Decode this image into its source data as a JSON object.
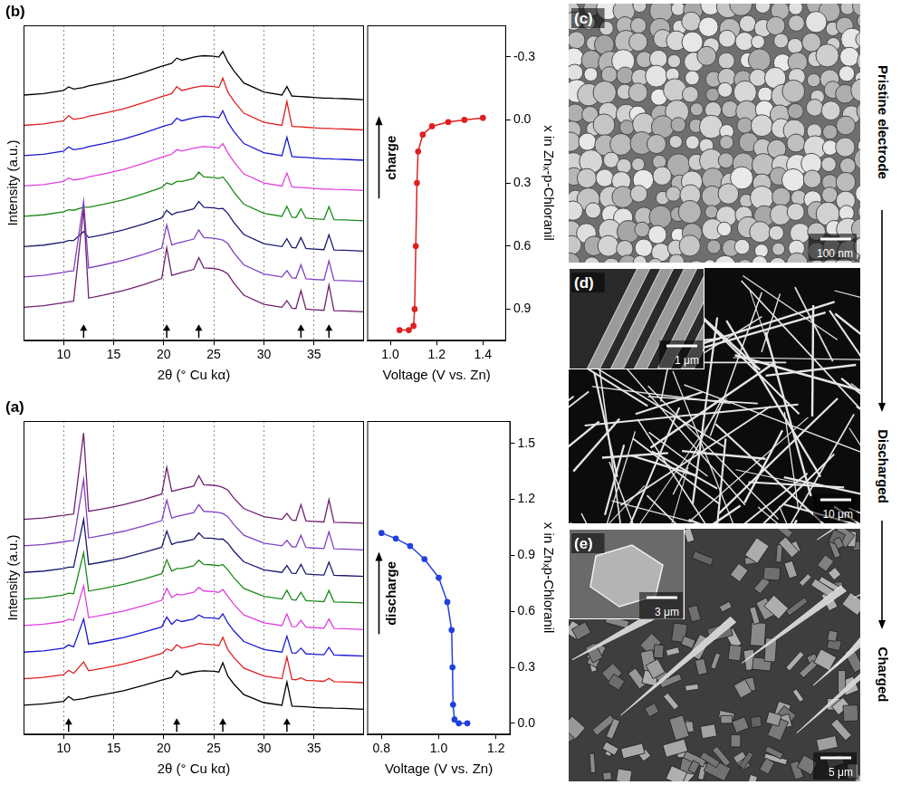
{
  "chart_data": [
    {
      "type": "line",
      "panel": "(b)",
      "x_label": "2θ (° Cu kα)",
      "y_label": "Intensity (a.u.)",
      "x": [
        6,
        8,
        10,
        10.5,
        11,
        12,
        12.5,
        14,
        16,
        18,
        19.8,
        20.3,
        20.8,
        21.3,
        21.8,
        23,
        23.5,
        24,
        25,
        25.5,
        25.9,
        26.4,
        27,
        28,
        30,
        31.8,
        32.3,
        32.8,
        33.2,
        33.7,
        34.2,
        35,
        36,
        36.5,
        37,
        38,
        40
      ],
      "series": [
        {
          "color": "#702070",
          "values": [
            0.3,
            0.35,
            0.45,
            0.48,
            0.5,
            3.55,
            0.6,
            0.7,
            0.85,
            1.05,
            1.25,
            2.26,
            1.35,
            1.4,
            1.45,
            1.55,
            1.94,
            1.6,
            1.58,
            1.55,
            1.5,
            1.4,
            1.1,
            0.7,
            0.4,
            0.3,
            0.52,
            0.27,
            0.26,
            0.85,
            0.24,
            0.22,
            0.2,
            1.04,
            0.19,
            0.18,
            0.15
          ]
        },
        {
          "color": "#8040c0",
          "values": [
            1.3,
            1.35,
            1.45,
            1.49,
            1.5,
            3.8,
            1.6,
            1.7,
            1.85,
            2.05,
            2.25,
            3.02,
            2.35,
            2.41,
            2.45,
            2.55,
            2.85,
            2.6,
            2.58,
            2.55,
            2.52,
            2.4,
            2.1,
            1.7,
            1.4,
            1.3,
            1.51,
            1.27,
            1.26,
            1.7,
            1.24,
            1.22,
            1.2,
            1.83,
            1.19,
            1.18,
            1.15
          ]
        },
        {
          "color": "#1a1a70",
          "values": [
            2.3,
            2.35,
            2.45,
            2.5,
            2.5,
            2.8,
            2.6,
            2.7,
            2.85,
            3.05,
            3.25,
            3.5,
            3.35,
            3.43,
            3.45,
            3.55,
            3.79,
            3.6,
            3.58,
            3.55,
            3.56,
            3.4,
            3.1,
            2.7,
            2.4,
            2.3,
            2.56,
            2.27,
            2.26,
            2.6,
            2.24,
            2.22,
            2.2,
            2.69,
            2.19,
            2.18,
            2.15
          ]
        },
        {
          "color": "#1a8a1a",
          "values": [
            3.3,
            3.35,
            3.45,
            3.52,
            3.5,
            3.6,
            3.6,
            3.7,
            3.85,
            4.05,
            4.25,
            4.4,
            4.35,
            4.45,
            4.45,
            4.55,
            4.76,
            4.6,
            4.58,
            4.55,
            4.6,
            4.4,
            4.1,
            3.7,
            3.4,
            3.3,
            3.63,
            3.27,
            3.26,
            3.55,
            3.24,
            3.22,
            3.2,
            3.62,
            3.19,
            3.18,
            3.15
          ]
        },
        {
          "color": "#e040e0",
          "values": [
            4.3,
            4.35,
            4.45,
            4.56,
            4.5,
            4.55,
            4.6,
            4.7,
            4.85,
            5.05,
            5.25,
            5.3,
            5.35,
            5.5,
            5.45,
            5.55,
            5.58,
            5.6,
            5.58,
            5.55,
            5.7,
            5.4,
            5.1,
            4.7,
            4.4,
            4.3,
            4.73,
            4.27,
            4.26,
            4.25,
            4.24,
            4.22,
            4.2,
            4.2,
            4.19,
            4.18,
            4.15
          ]
        },
        {
          "color": "#1a1ad0",
          "values": [
            5.3,
            5.35,
            5.45,
            5.59,
            5.5,
            5.55,
            5.6,
            5.7,
            5.85,
            6.05,
            6.25,
            6.3,
            6.35,
            6.54,
            6.45,
            6.55,
            6.58,
            6.6,
            6.58,
            6.55,
            6.78,
            6.4,
            6.1,
            5.7,
            5.4,
            5.3,
            5.91,
            5.27,
            5.26,
            5.25,
            5.24,
            5.22,
            5.2,
            5.2,
            5.19,
            5.18,
            5.15
          ]
        },
        {
          "color": "#e02020",
          "values": [
            6.3,
            6.35,
            6.45,
            6.62,
            6.5,
            6.55,
            6.6,
            6.7,
            6.85,
            7.05,
            7.25,
            7.3,
            7.35,
            7.58,
            7.45,
            7.55,
            7.58,
            7.6,
            7.58,
            7.55,
            7.86,
            7.4,
            7.1,
            6.7,
            6.4,
            6.3,
            7.09,
            6.27,
            6.26,
            6.25,
            6.24,
            6.22,
            6.2,
            6.2,
            6.19,
            6.18,
            6.15
          ]
        },
        {
          "color": "#000000",
          "values": [
            7.3,
            7.35,
            7.45,
            7.57,
            7.5,
            7.55,
            7.6,
            7.7,
            7.85,
            8.05,
            8.25,
            8.3,
            8.35,
            8.52,
            8.45,
            8.55,
            8.58,
            8.6,
            8.58,
            8.55,
            8.74,
            8.4,
            8.1,
            7.7,
            7.4,
            7.3,
            7.58,
            7.27,
            7.26,
            7.25,
            7.24,
            7.22,
            7.2,
            7.2,
            7.19,
            7.18,
            7.15
          ]
        }
      ],
      "xlim": [
        6,
        40
      ],
      "xticks": [
        10,
        15,
        20,
        25,
        30,
        35
      ],
      "ylim": [
        -0.8,
        9.6
      ],
      "grid": "x",
      "tick_labels": "x",
      "marked_peaks": [
        12,
        20.3,
        23.5,
        33.7,
        36.5
      ]
    },
    {
      "type": "line",
      "x_label": "Voltage (V vs. Zn)",
      "y_label": "x in Znₓ-p-Chloranil",
      "annotation": "charge",
      "x": [
        1.04,
        1.08,
        1.1,
        1.105,
        1.11,
        1.115,
        1.12,
        1.14,
        1.18,
        1.25,
        1.32,
        1.4
      ],
      "values": [
        1.0,
        1.0,
        0.98,
        0.9,
        0.6,
        0.3,
        0.15,
        0.07,
        0.03,
        0.01,
        0,
        -0.01
      ],
      "color": "#e02020",
      "marker": "circle",
      "xlim": [
        0.9,
        1.5
      ],
      "xticks": [
        {
          "value": 1,
          "label": "1.0"
        },
        1.2,
        1.4
      ],
      "ylim": [
        1.05,
        -0.45
      ],
      "yticks": [
        -0.3,
        {
          "value": 0,
          "label": "0.0"
        },
        0.3,
        0.6,
        0.9
      ],
      "grid": false
    },
    {
      "type": "line",
      "panel": "(a)",
      "x_label": "2θ (° Cu kα)",
      "y_label": "Intensity (a.u.)",
      "x": [
        6,
        8,
        10,
        10.5,
        11,
        12,
        12.5,
        14,
        16,
        18,
        19.8,
        20.3,
        20.8,
        21.3,
        21.8,
        23,
        23.5,
        24,
        25,
        25.5,
        25.9,
        26.4,
        27,
        28,
        30,
        31.8,
        32.3,
        32.8,
        33.2,
        33.7,
        34.2,
        35,
        36,
        36.5,
        37,
        38,
        40
      ],
      "series": [
        {
          "color": "#000000",
          "values": [
            0.3,
            0.35,
            0.45,
            0.63,
            0.5,
            0.55,
            0.6,
            0.7,
            0.85,
            1.05,
            1.25,
            1.3,
            1.35,
            1.6,
            1.45,
            1.55,
            1.58,
            1.6,
            1.58,
            1.55,
            1.9,
            1.4,
            1.1,
            0.7,
            0.4,
            0.3,
            1.18,
            0.27,
            0.26,
            0.25,
            0.24,
            0.22,
            0.2,
            0.2,
            0.19,
            0.18,
            0.15
          ]
        },
        {
          "color": "#e02020",
          "values": [
            1.3,
            1.35,
            1.45,
            1.62,
            1.5,
            1.93,
            1.6,
            1.7,
            1.85,
            2.05,
            2.25,
            2.42,
            2.35,
            2.58,
            2.45,
            2.55,
            2.63,
            2.6,
            2.58,
            2.55,
            2.86,
            2.4,
            2.1,
            1.7,
            1.4,
            1.3,
            2.12,
            1.27,
            1.26,
            1.33,
            1.24,
            1.22,
            1.2,
            1.31,
            1.19,
            1.18,
            1.15
          ]
        },
        {
          "color": "#1a1ad0",
          "values": [
            2.3,
            2.35,
            2.45,
            2.57,
            2.5,
            3.55,
            2.6,
            2.7,
            2.85,
            3.05,
            3.25,
            3.62,
            3.35,
            3.52,
            3.45,
            3.55,
            3.7,
            3.6,
            3.58,
            3.55,
            3.74,
            3.4,
            3.1,
            2.7,
            2.4,
            2.3,
            2.9,
            2.27,
            2.26,
            2.45,
            2.24,
            2.22,
            2.2,
            2.48,
            2.19,
            2.18,
            2.15
          ]
        },
        {
          "color": "#e040e0",
          "values": [
            3.3,
            3.35,
            3.45,
            3.54,
            3.5,
            4.8,
            3.6,
            3.7,
            3.85,
            4.05,
            4.25,
            4.7,
            4.35,
            4.48,
            4.45,
            4.55,
            4.73,
            4.6,
            4.58,
            4.55,
            4.66,
            4.4,
            4.1,
            3.7,
            3.4,
            3.3,
            3.74,
            3.27,
            3.26,
            3.5,
            3.24,
            3.22,
            3.2,
            3.55,
            3.19,
            3.18,
            3.15
          ]
        },
        {
          "color": "#1a8a1a",
          "values": [
            4.3,
            4.35,
            4.45,
            4.52,
            4.5,
            6.05,
            4.6,
            4.7,
            4.85,
            5.05,
            5.25,
            5.78,
            5.35,
            5.45,
            5.45,
            5.55,
            5.76,
            5.6,
            5.58,
            5.55,
            5.6,
            5.4,
            5.1,
            4.7,
            4.4,
            4.3,
            4.63,
            4.27,
            4.26,
            4.55,
            4.24,
            4.22,
            4.2,
            4.62,
            4.19,
            4.18,
            4.15
          ]
        },
        {
          "color": "#1a1a70",
          "values": [
            5.3,
            5.35,
            5.45,
            5.5,
            5.5,
            7.3,
            5.6,
            5.7,
            5.85,
            6.05,
            6.25,
            6.86,
            6.35,
            6.43,
            6.45,
            6.55,
            6.79,
            6.6,
            6.58,
            6.55,
            6.56,
            6.4,
            6.1,
            5.7,
            5.4,
            5.3,
            5.56,
            5.27,
            5.26,
            5.6,
            5.24,
            5.22,
            5.2,
            5.69,
            5.19,
            5.18,
            5.15
          ]
        },
        {
          "color": "#8040c0",
          "values": [
            6.3,
            6.35,
            6.45,
            6.49,
            6.5,
            8.8,
            6.6,
            6.7,
            6.85,
            7.05,
            7.25,
            8.02,
            7.35,
            7.41,
            7.45,
            7.55,
            7.85,
            7.6,
            7.58,
            7.55,
            7.52,
            7.4,
            7.1,
            6.7,
            6.4,
            6.3,
            6.51,
            6.27,
            6.26,
            6.7,
            6.24,
            6.22,
            6.2,
            6.83,
            6.19,
            6.18,
            6.15
          ]
        },
        {
          "color": "#702070",
          "values": [
            7.3,
            7.35,
            7.45,
            7.48,
            7.5,
            10.55,
            7.6,
            7.7,
            7.85,
            8.05,
            8.25,
            9.26,
            8.35,
            8.4,
            8.45,
            8.55,
            8.94,
            8.6,
            8.58,
            8.55,
            8.5,
            8.4,
            8.1,
            7.7,
            7.4,
            7.3,
            7.52,
            7.27,
            7.26,
            7.85,
            7.24,
            7.22,
            7.2,
            8.04,
            7.19,
            7.18,
            7.15
          ]
        }
      ],
      "xlim": [
        6,
        40
      ],
      "xticks": [
        10,
        15,
        20,
        25,
        30,
        35
      ],
      "ylim": [
        -0.8,
        11
      ],
      "grid": "x",
      "tick_labels": "x",
      "marked_peaks": [
        10.5,
        21.3,
        25.9,
        32.3
      ]
    },
    {
      "type": "line",
      "x_label": "Voltage (V vs. Zn)",
      "y_label": "x in Znₓp-Chloranil",
      "annotation": "discharge",
      "x": [
        1.1,
        1.07,
        1.055,
        1.05,
        1.048,
        1.045,
        1.03,
        1.0,
        0.95,
        0.9,
        0.85,
        0.8
      ],
      "values": [
        0,
        0,
        0.02,
        0.1,
        0.3,
        0.5,
        0.65,
        0.78,
        0.88,
        0.95,
        0.99,
        1.02
      ],
      "color": "#2040e0",
      "marker": "circle",
      "xlim": [
        0.75,
        1.25
      ],
      "xticks": [
        0.8,
        {
          "value": 1,
          "label": "1.0"
        },
        1.2
      ],
      "ylim": [
        -0.06,
        1.62
      ],
      "yticks": [
        {
          "value": 0,
          "label": "0.0"
        },
        0.3,
        0.6,
        0.9,
        1.2,
        1.5
      ],
      "grid": false
    }
  ],
  "images": [
    {
      "panel": "(c)",
      "state": "Pristine electrode",
      "scale_bars": [
        "100 nm"
      ]
    },
    {
      "panel": "(d)",
      "state": "Discharged",
      "scale_bars": [
        "1 μm",
        "10 μm"
      ]
    },
    {
      "panel": "(e)",
      "state": "Charged",
      "scale_bars": [
        "3 μm",
        "5 μm"
      ]
    }
  ]
}
